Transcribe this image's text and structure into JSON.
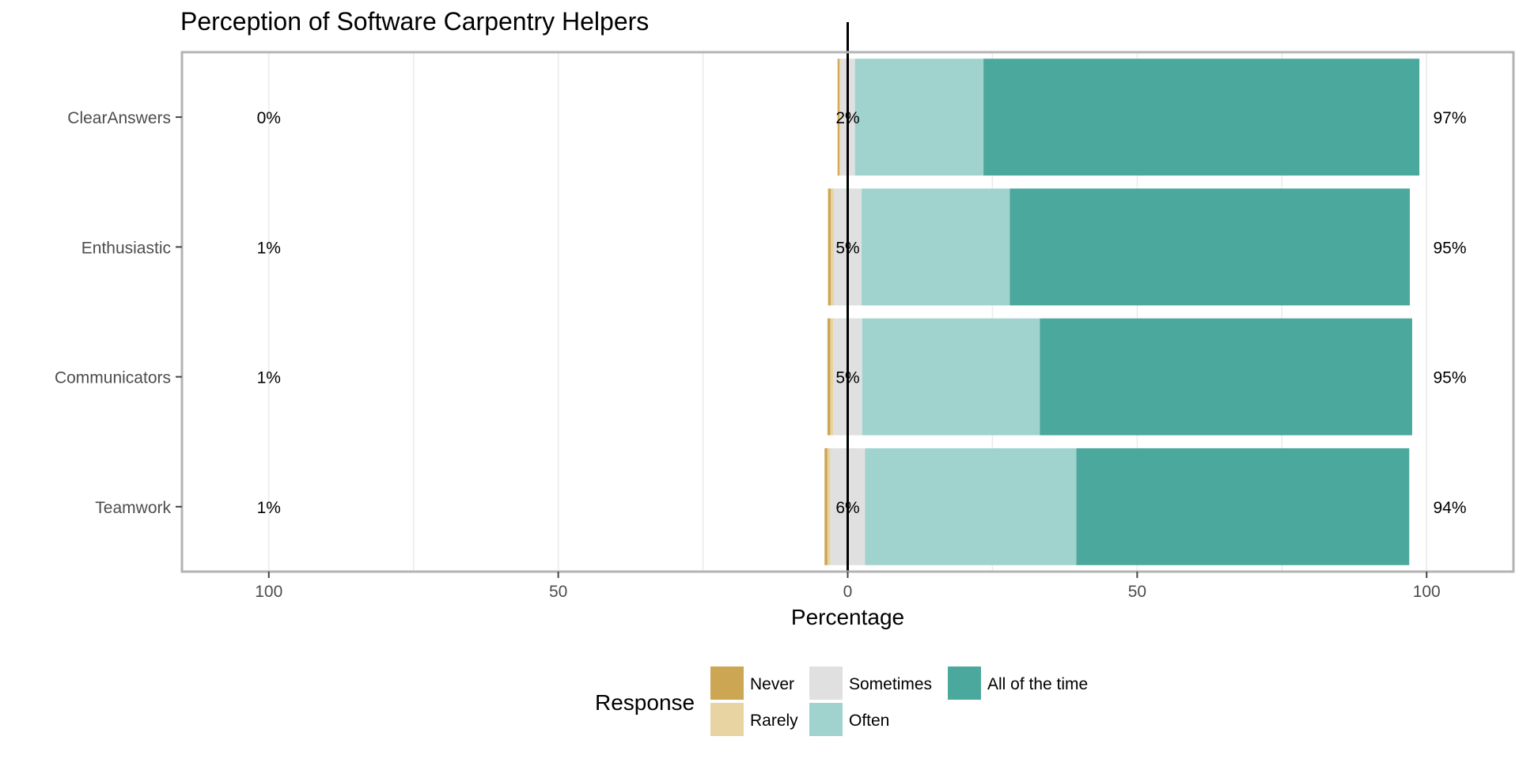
{
  "chart_data": {
    "type": "bar",
    "orientation": "horizontal",
    "stacked": "diverging",
    "title": "Perception of Software Carpentry Helpers",
    "xlabel": "Percentage",
    "ylabel": "",
    "xlim": [
      -100,
      100
    ],
    "x_ticks": [
      -100,
      -50,
      0,
      50,
      100
    ],
    "x_tick_labels": [
      "100",
      "50",
      "0",
      "50",
      "100"
    ],
    "grid": true,
    "legend_title": "Response",
    "legend_position": "bottom",
    "categories": [
      "ClearAnswers",
      "Enthusiastic",
      "Communicators",
      "Teamwork"
    ],
    "series": [
      {
        "name": "Never",
        "color": "#CDA653",
        "values": [
          0.3,
          0.5,
          0.5,
          0.5
        ]
      },
      {
        "name": "Rarely",
        "color": "#E8D3A2",
        "values": [
          0.2,
          0.5,
          0.5,
          0.5
        ]
      },
      {
        "name": "Sometimes",
        "color": "#E0E0E0",
        "values": [
          2.5,
          4.8,
          5.0,
          6.0
        ]
      },
      {
        "name": "Often",
        "color": "#A0D3CD",
        "values": [
          22.2,
          25.6,
          30.7,
          36.5
        ]
      },
      {
        "name": "All of the time",
        "color": "#4BA89D",
        "values": [
          75.3,
          69.1,
          64.3,
          57.5
        ]
      }
    ],
    "labels": {
      "left": [
        "0%",
        "1%",
        "1%",
        "1%"
      ],
      "center": [
        "2%",
        "5%",
        "5%",
        "6%"
      ],
      "right": [
        "97%",
        "95%",
        "95%",
        "94%"
      ]
    }
  }
}
